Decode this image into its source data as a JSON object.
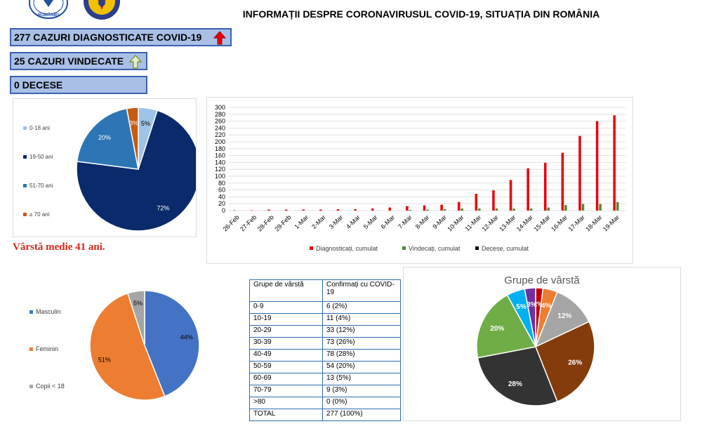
{
  "header": {
    "title": "INFORMAȚII DESPRE CORONAVIRUSUL COVID-19, SITUAȚIA DIN ROMÂNIA",
    "logo_left_text": "ROMÂNIEI",
    "logo_left_color": "#1f4fa0",
    "logo_right_color": "#2d3e8f"
  },
  "stats": {
    "diagnosed": "277 CAZURI DIAGNOSTICATE COVID-19",
    "recovered": "25 CAZURI VINDECATE",
    "deaths": "0 DECESE",
    "diagnosed_arrow": "up-arrow-red-icon",
    "recovered_arrow": "up-arrow-outline-icon"
  },
  "age_note": "Vârstă medie 41 ani.",
  "table": {
    "headers": [
      "Grupe de vârstă",
      "Confirmați cu COVID-19"
    ],
    "rows": [
      [
        "0-9",
        "6 (2%)"
      ],
      [
        "10-19",
        "11 (4%)"
      ],
      [
        "20-29",
        "33 (12%)"
      ],
      [
        "30-39",
        "73 (26%)"
      ],
      [
        "40-49",
        "78 (28%)"
      ],
      [
        "50-59",
        "54 (20%)"
      ],
      [
        "60-69",
        "13 (5%)"
      ],
      [
        "70-79",
        "9 (3%)"
      ],
      [
        ">80",
        "0 (0%)"
      ],
      [
        "TOTAL",
        "277 (100%)"
      ]
    ]
  },
  "chart_data": [
    {
      "type": "pie",
      "title": "",
      "legend_position": "left",
      "slices": [
        {
          "label": "0-18 ani",
          "value": 5,
          "data_label": "5%",
          "color": "#9dc3e6"
        },
        {
          "label": "19-50 ani",
          "value": 72,
          "data_label": "72%",
          "color": "#0b2a6b"
        },
        {
          "label": "51-70 ani",
          "value": 20,
          "data_label": "20%",
          "color": "#2e75b6"
        },
        {
          "label": "≥ 70 ani",
          "value": 3,
          "data_label": "3%",
          "color": "#c55a11"
        }
      ]
    },
    {
      "type": "bar",
      "title": "",
      "legend_position": "bottom",
      "grid": true,
      "ylim": [
        0,
        300
      ],
      "yticks": [
        0,
        20,
        40,
        60,
        80,
        100,
        120,
        140,
        160,
        180,
        200,
        220,
        240,
        260,
        280,
        300
      ],
      "categories": [
        "26-Feb",
        "27-Feb",
        "28-Feb",
        "29-Feb",
        "1-Mar",
        "2-Mar",
        "3-Mar",
        "4-Mar",
        "5-Mar",
        "6-Mar",
        "7-Mar",
        "8-Mar",
        "9-Mar",
        "10-Mar",
        "11-Mar",
        "12-Mar",
        "13-Mar",
        "14-Mar",
        "15-Mar",
        "16-Mar",
        "17-Mar",
        "18-Mar",
        "19-Mar"
      ],
      "series": [
        {
          "name": "Diagnosticați, cumulat",
          "color": "#e8000b",
          "values": [
            1,
            1,
            3,
            3,
            3,
            3,
            4,
            4,
            6,
            9,
            13,
            15,
            17,
            25,
            49,
            59,
            89,
            123,
            139,
            168,
            217,
            260,
            277
          ]
        },
        {
          "name": "Vindecați, cumulat",
          "color": "#4e8a2e",
          "values": [
            0,
            0,
            0,
            0,
            0,
            0,
            0,
            0,
            0,
            0,
            2,
            3,
            4,
            6,
            6,
            6,
            6,
            6,
            9,
            16,
            19,
            19,
            25
          ]
        },
        {
          "name": "Decese, cumulat",
          "color": "#000000",
          "values": [
            0,
            0,
            0,
            0,
            0,
            0,
            0,
            0,
            0,
            0,
            0,
            0,
            0,
            0,
            0,
            0,
            0,
            0,
            0,
            0,
            0,
            0,
            0
          ]
        }
      ]
    },
    {
      "type": "pie",
      "title": "",
      "legend_position": "left",
      "slices": [
        {
          "label": "Masculin",
          "value": 44,
          "data_label": "44%",
          "color": "#4472c4"
        },
        {
          "label": "Feminin",
          "value": 51,
          "data_label": "51%",
          "color": "#ed7d31"
        },
        {
          "label": "Copii < 18",
          "value": 5,
          "data_label": "5%",
          "color": "#a5a5a5"
        }
      ]
    },
    {
      "type": "pie",
      "title": "Grupe de vârstă",
      "legend_position": "none",
      "slices": [
        {
          "label": "0-9",
          "value": 2,
          "data_label": "2%",
          "color": "#c00000"
        },
        {
          "label": "10-19",
          "value": 4,
          "data_label": "4%",
          "color": "#ed7d31"
        },
        {
          "label": "20-29",
          "value": 12,
          "data_label": "12%",
          "color": "#a5a5a5"
        },
        {
          "label": "30-39",
          "value": 26,
          "data_label": "26%",
          "color": "#843c0c"
        },
        {
          "label": "40-49",
          "value": 28,
          "data_label": "28%",
          "color": "#333333"
        },
        {
          "label": "50-59",
          "value": 20,
          "data_label": "20%",
          "color": "#70ad47"
        },
        {
          "label": "60-69",
          "value": 5,
          "data_label": "5%",
          "color": "#00b0f0"
        },
        {
          "label": "70-79",
          "value": 3,
          "data_label": "3%",
          "color": "#7030a0"
        }
      ]
    }
  ]
}
